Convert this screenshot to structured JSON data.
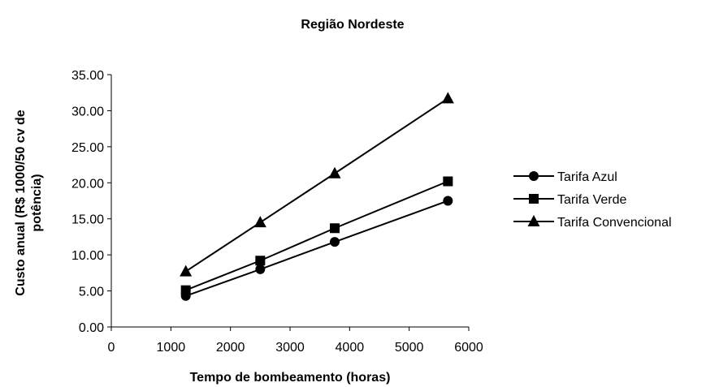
{
  "chart_data": {
    "type": "line",
    "title": "Região Nordeste",
    "xlabel": "Tempo de bombeamento (horas)",
    "ylabel_lines": [
      "Custo anual (R$ 1000/50 cv de",
      "potência)"
    ],
    "xlim": [
      0,
      6000
    ],
    "ylim": [
      0,
      35
    ],
    "xticks": [
      "0",
      "1000",
      "2000",
      "3000",
      "4000",
      "5000",
      "6000"
    ],
    "yticks": [
      "0.00",
      "5.00",
      "10.00",
      "15.00",
      "20.00",
      "25.00",
      "30.00",
      "35.00"
    ],
    "grid": false,
    "legend_position": "right",
    "series": [
      {
        "name": "Tarifa Azul",
        "marker": "circle",
        "color": "#000000",
        "x": [
          1250,
          2500,
          3750,
          5650
        ],
        "y": [
          4.3,
          8.0,
          11.8,
          17.5
        ]
      },
      {
        "name": "Tarifa Verde",
        "marker": "square",
        "color": "#000000",
        "x": [
          1250,
          2500,
          3750,
          5650
        ],
        "y": [
          5.1,
          9.2,
          13.7,
          20.2
        ]
      },
      {
        "name": "Tarifa Convencional",
        "marker": "triangle",
        "color": "#000000",
        "x": [
          1250,
          2500,
          3750,
          5650
        ],
        "y": [
          7.7,
          14.5,
          21.3,
          31.7
        ]
      }
    ]
  }
}
